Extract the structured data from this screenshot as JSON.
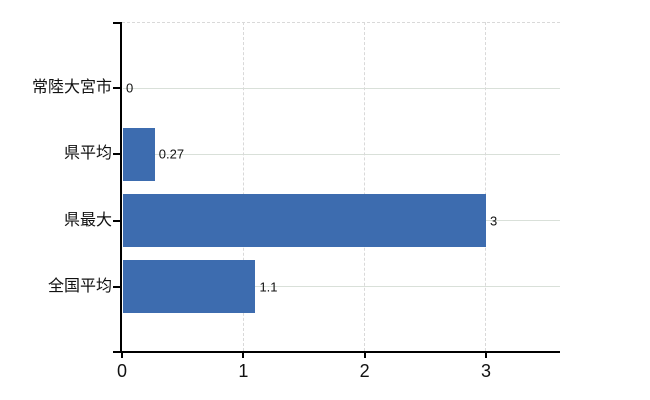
{
  "chart_data": {
    "type": "bar",
    "orientation": "horizontal",
    "title": "",
    "xlabel": "",
    "ylabel": "",
    "categories": [
      "常陸大宮市",
      "県平均",
      "県最大",
      "全国平均"
    ],
    "values": [
      0,
      0.27,
      3,
      1.1
    ],
    "value_labels": [
      "0",
      "0.27",
      "3",
      "1.1"
    ],
    "x_ticks": [
      {
        "value": 0,
        "label": "0"
      },
      {
        "value": 1,
        "label": "1"
      },
      {
        "value": 2,
        "label": "2"
      },
      {
        "value": 3,
        "label": "3"
      }
    ],
    "xlim": [
      0,
      3.61
    ],
    "grid": true,
    "legend": null,
    "colors": {
      "bar": "#3d6caf",
      "axis": "#000000",
      "h_gridline": "#d9e0d9",
      "v_gridline": "#d9d9d9",
      "text": "#111111",
      "background": "#ffffff"
    }
  }
}
